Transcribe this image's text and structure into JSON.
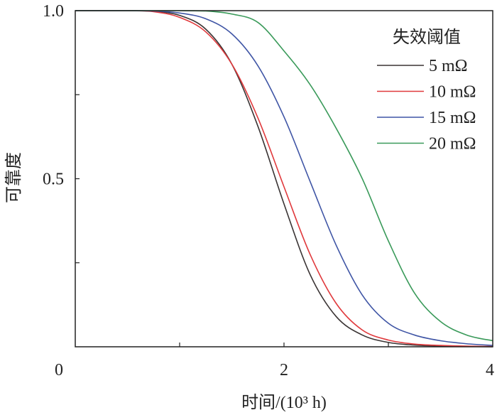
{
  "chart_data": {
    "type": "line",
    "xlabel": "时间/(10³ h)",
    "ylabel": "可靠度",
    "xlim": [
      0,
      4
    ],
    "ylim": [
      0,
      1.0
    ],
    "x_ticks": [
      0,
      1,
      2,
      3,
      4
    ],
    "x_tick_labels": [
      "0",
      "",
      "2",
      "",
      "4"
    ],
    "y_ticks": [
      0.25,
      0.5,
      0.75,
      1.0
    ],
    "y_tick_labels": [
      "",
      "0.5",
      "",
      "1.0"
    ],
    "grid": false,
    "legend": {
      "title": "失效阈值",
      "placement": "top-right"
    },
    "x": [
      0,
      0.25,
      0.5,
      0.75,
      1.0,
      1.25,
      1.5,
      1.75,
      2.0,
      2.25,
      2.5,
      2.75,
      3.0,
      3.25,
      3.5,
      3.75,
      4.0
    ],
    "series": [
      {
        "name": "5 mΩ",
        "color": "#3a3434",
        "values": [
          1,
          1,
          1,
          0.998,
          0.986,
          0.945,
          0.841,
          0.656,
          0.425,
          0.215,
          0.09,
          0.035,
          0.013,
          0.005,
          0.002,
          0.001,
          0
        ]
      },
      {
        "name": "10 mΩ",
        "color": "#e0393c",
        "values": [
          1,
          1,
          1,
          0.997,
          0.98,
          0.937,
          0.841,
          0.681,
          0.476,
          0.275,
          0.129,
          0.05,
          0.02,
          0.008,
          0.004,
          0.002,
          0.001
        ]
      },
      {
        "name": "15 mΩ",
        "color": "#3f55a5",
        "values": [
          1,
          1,
          1,
          0.999,
          0.993,
          0.976,
          0.931,
          0.836,
          0.684,
          0.492,
          0.302,
          0.154,
          0.07,
          0.035,
          0.018,
          0.009,
          0.004
        ]
      },
      {
        "name": "20 mΩ",
        "color": "#3a9a5a",
        "values": [
          1,
          1,
          1,
          1,
          1,
          0.999,
          0.99,
          0.965,
          0.88,
          0.78,
          0.65,
          0.5,
          0.315,
          0.16,
          0.075,
          0.035,
          0.018
        ]
      }
    ]
  }
}
